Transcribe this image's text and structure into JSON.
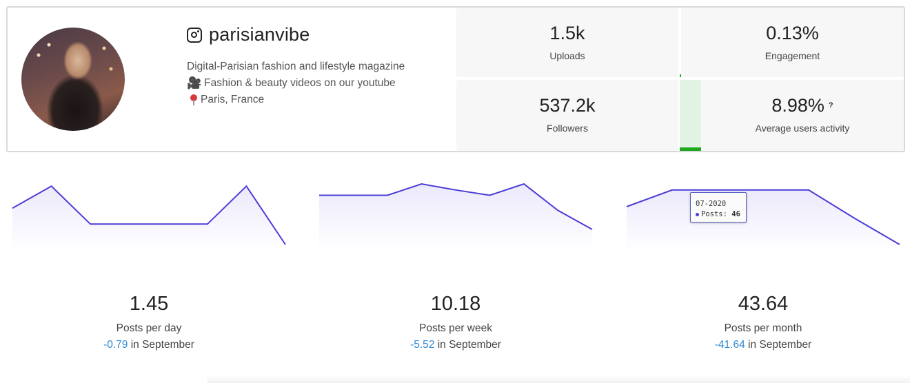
{
  "profile": {
    "handle": "parisianvibe",
    "bio_line1": "Digital-Parisian fashion and lifestyle magazine",
    "bio_line2": "Fashion & beauty videos on our youtube",
    "bio_line3": "Paris, France",
    "icons": [
      "instagram-icon",
      "video-camera-icon",
      "location-pin-icon"
    ]
  },
  "stats": {
    "uploads": {
      "value": "1.5k",
      "label": "Uploads"
    },
    "engagement": {
      "value": "0.13%",
      "label": "Engagement"
    },
    "followers": {
      "value": "537.2k",
      "label": "Followers"
    },
    "activity": {
      "value": "8.98%",
      "label": "Average users activity",
      "help": "?"
    }
  },
  "colors": {
    "line": "#4b3dd6",
    "area_fill": "#ece9fb",
    "delta": "#2f8bd6",
    "activity_green": "#1fa81f"
  },
  "metrics": [
    {
      "value": "1.45",
      "label": "Posts per day",
      "delta": "-0.79",
      "period": "in September"
    },
    {
      "value": "10.18",
      "label": "Posts per week",
      "delta": "-5.52",
      "period": "in September"
    },
    {
      "value": "43.64",
      "label": "Posts per month",
      "delta": "-41.64",
      "period": "in September"
    }
  ],
  "chart_data": [
    {
      "type": "area",
      "points": [
        0.58,
        0.87,
        0.37,
        0.37,
        0.37,
        0.37,
        0.87,
        0.1
      ]
    },
    {
      "type": "area",
      "points": [
        0.75,
        0.75,
        0.75,
        0.9,
        0.82,
        0.75,
        0.9,
        0.55,
        0.3
      ]
    },
    {
      "type": "area",
      "points": [
        0.6,
        0.82,
        0.82,
        0.82,
        0.82,
        0.45,
        0.1
      ]
    }
  ],
  "tooltip": {
    "date": "07-2020",
    "series": "Posts:",
    "count": "46"
  }
}
